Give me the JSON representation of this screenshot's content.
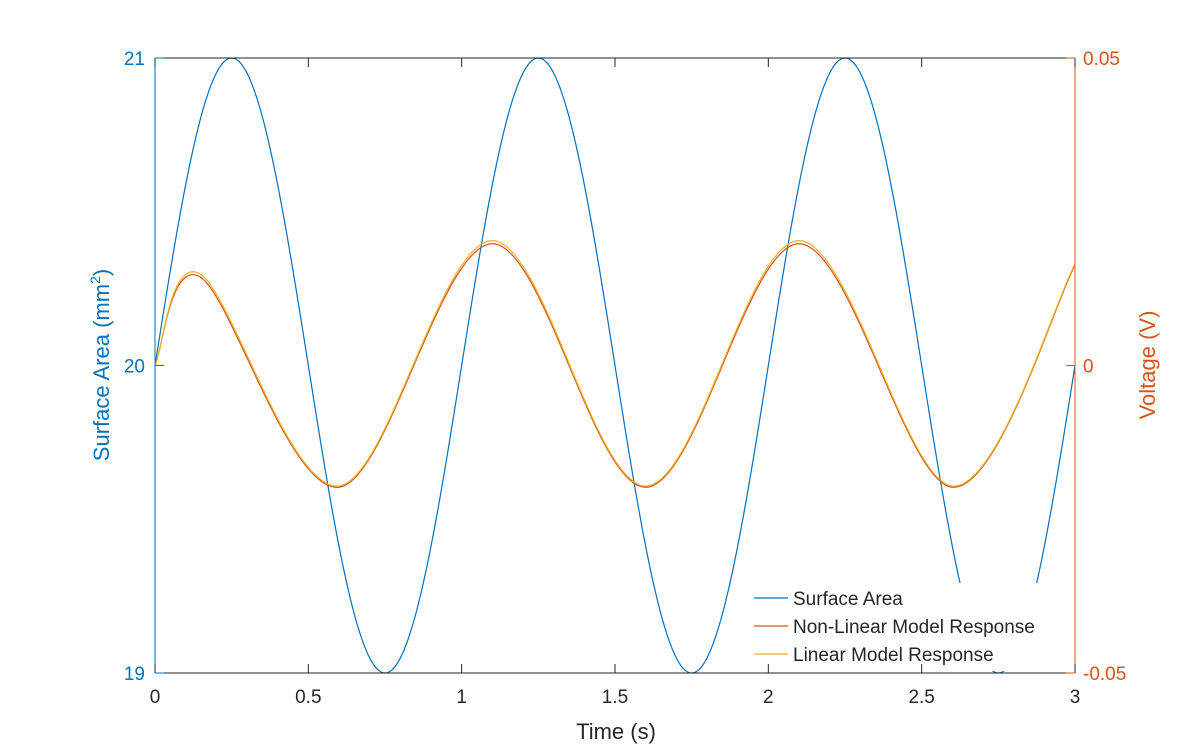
{
  "chart_data": {
    "type": "line",
    "xlabel": "Time (s)",
    "ylabel_left": "Surface Area (mm",
    "ylabel_left_sup": "2",
    "ylabel_left_close": ")",
    "ylabel_right": "Voltage (V)",
    "xlim": [
      0,
      3
    ],
    "ylim_left": [
      19,
      21
    ],
    "ylim_right": [
      -0.05,
      0.05
    ],
    "x_ticks": [
      "0",
      "0.5",
      "1",
      "1.5",
      "2",
      "2.5",
      "3"
    ],
    "y_left_ticks": [
      "19",
      "20",
      "21"
    ],
    "y_right_ticks": [
      "-0.05",
      "0",
      "0.05"
    ],
    "grid": false,
    "legend_position": "bottom-right",
    "series": [
      {
        "name": "Surface Area",
        "axis": "left",
        "color": "#0072BD",
        "function": "20 + sin(2*pi*t)",
        "x": [
          0,
          0.25,
          0.5,
          0.75,
          1.0,
          1.25,
          1.5,
          1.75,
          2.0,
          2.25,
          2.5,
          2.75,
          3.0
        ],
        "values": [
          20,
          21,
          20,
          19,
          20,
          21,
          20,
          19,
          20,
          21,
          20,
          19,
          20
        ]
      },
      {
        "name": "Non-Linear Model Response",
        "axis": "right",
        "color": "#D95319",
        "x": [
          0,
          0.15,
          0.6,
          1.1,
          1.6,
          2.1,
          2.6,
          3.0
        ],
        "values": [
          0,
          0.0143,
          -0.0198,
          0.0198,
          -0.0198,
          0.0198,
          -0.0198,
          0.0163
        ]
      },
      {
        "name": "Linear Model Response",
        "axis": "right",
        "color": "#EDB120",
        "x": [
          0,
          0.15,
          0.6,
          1.1,
          1.6,
          2.1,
          2.6,
          3.0
        ],
        "values": [
          0,
          0.0148,
          -0.0196,
          0.0203,
          -0.0196,
          0.0203,
          -0.0196,
          0.0165
        ]
      }
    ]
  }
}
